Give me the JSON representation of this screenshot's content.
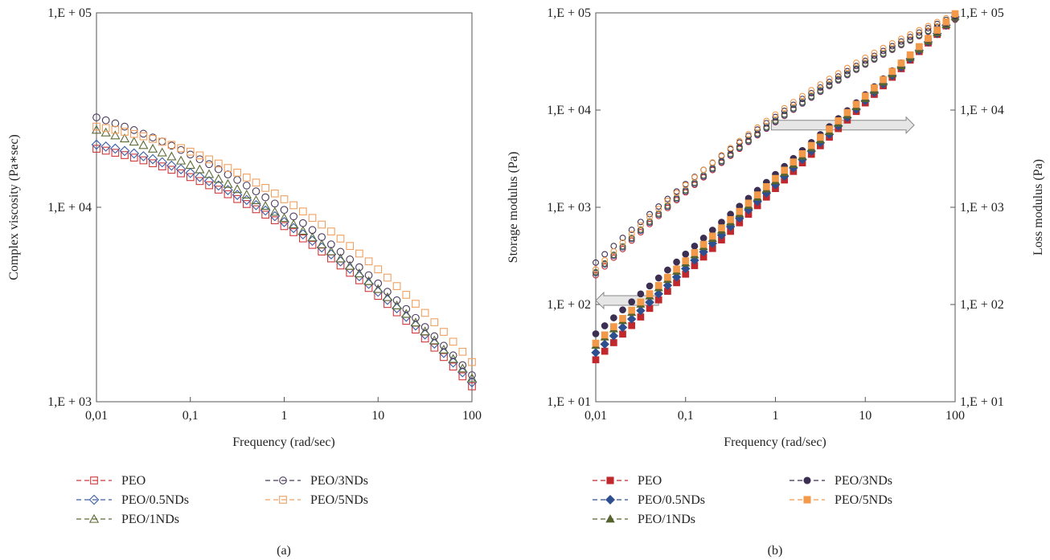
{
  "chart_data": [
    {
      "type": "scatter",
      "panel_label": "(a)",
      "xlabel": "Frequency (rad/sec)",
      "ylabel": "Complex viscosity (Pa∗sec)",
      "xscale": "log",
      "yscale": "log",
      "xlim": [
        0.01,
        100
      ],
      "ylim": [
        1000,
        100000
      ],
      "xticks": [
        0.01,
        0.1,
        1,
        10,
        100
      ],
      "xtick_labels": [
        "0,01",
        "0,1",
        "1",
        "10",
        "100"
      ],
      "yticks": [
        1000,
        10000,
        100000
      ],
      "ytick_labels": [
        "1,E + 03",
        "1,E + 04",
        "1,E + 05"
      ],
      "grid": false,
      "legend_position": "bottom",
      "series": [
        {
          "name": "PEO",
          "color": "#d0383a",
          "marker": "open-square",
          "y_start": 20000,
          "y_1": 8000,
          "y_end": 1200
        },
        {
          "name": "PEO/0.5NDs",
          "color": "#3b5fa6",
          "marker": "open-diamond",
          "y_start": 21000,
          "y_1": 8400,
          "y_end": 1260
        },
        {
          "name": "PEO/1NDs",
          "color": "#5d6b35",
          "marker": "open-triangle",
          "y_start": 25000,
          "y_1": 8800,
          "y_end": 1320
        },
        {
          "name": "PEO/3NDs",
          "color": "#4a3a5c",
          "marker": "open-circle",
          "y_start": 29000,
          "y_1": 9700,
          "y_end": 1370
        },
        {
          "name": "PEO/5NDs",
          "color": "#f0a060",
          "marker": "open-square",
          "y_start": 26000,
          "y_1": 11000,
          "y_end": 1600
        }
      ]
    },
    {
      "type": "scatter",
      "panel_label": "(b)",
      "xlabel": "Frequency (rad/sec)",
      "ylabel_left": "Storage modulus (Pa)",
      "ylabel_right": "Loss modulus (Pa)",
      "xscale": "log",
      "yscale": "log",
      "xlim": [
        0.01,
        100
      ],
      "ylim": [
        10,
        100000
      ],
      "xticks": [
        0.01,
        0.1,
        1,
        10,
        100
      ],
      "xtick_labels": [
        "0,01",
        "0,1",
        "1",
        "10",
        "100"
      ],
      "yticks": [
        10,
        100,
        1000,
        10000,
        100000
      ],
      "ytick_labels": [
        "1,E + 01",
        "1,E + 02",
        "1,E + 03",
        "1,E + 04",
        "1,E + 05"
      ],
      "grid": false,
      "legend_position": "bottom",
      "arrows": [
        {
          "direction": "left",
          "from_x": 0.05,
          "to_x": 0.01,
          "y": 110
        },
        {
          "direction": "right",
          "from_x": 0.9,
          "to_x": 35,
          "y": 7000
        }
      ],
      "series": [
        {
          "name": "PEO",
          "color": "#c0282d",
          "marker": "filled-square",
          "storage_start": 27,
          "storage_end": 90000,
          "loss_start": 200,
          "loss_1": 7500,
          "loss_end": 85000
        },
        {
          "name": "PEO/0.5NDs",
          "color": "#2e4f8f",
          "marker": "filled-diamond",
          "storage_start": 32,
          "storage_end": 91000,
          "loss_start": 210,
          "loss_1": 7600,
          "loss_end": 86000
        },
        {
          "name": "PEO/1NDs",
          "color": "#56632f",
          "marker": "filled-triangle",
          "storage_start": 38,
          "storage_end": 92000,
          "loss_start": 215,
          "loss_1": 7800,
          "loss_end": 87000
        },
        {
          "name": "PEO/3NDs",
          "color": "#3d2f52",
          "marker": "filled-circle",
          "storage_start": 50,
          "storage_end": 95000,
          "loss_start": 270,
          "loss_1": 8500,
          "loss_end": 93000
        },
        {
          "name": "PEO/5NDs",
          "color": "#f2994a",
          "marker": "filled-square",
          "storage_start": 40,
          "storage_end": 98000,
          "loss_start": 230,
          "loss_1": 9000,
          "loss_end": 96000
        }
      ]
    }
  ]
}
